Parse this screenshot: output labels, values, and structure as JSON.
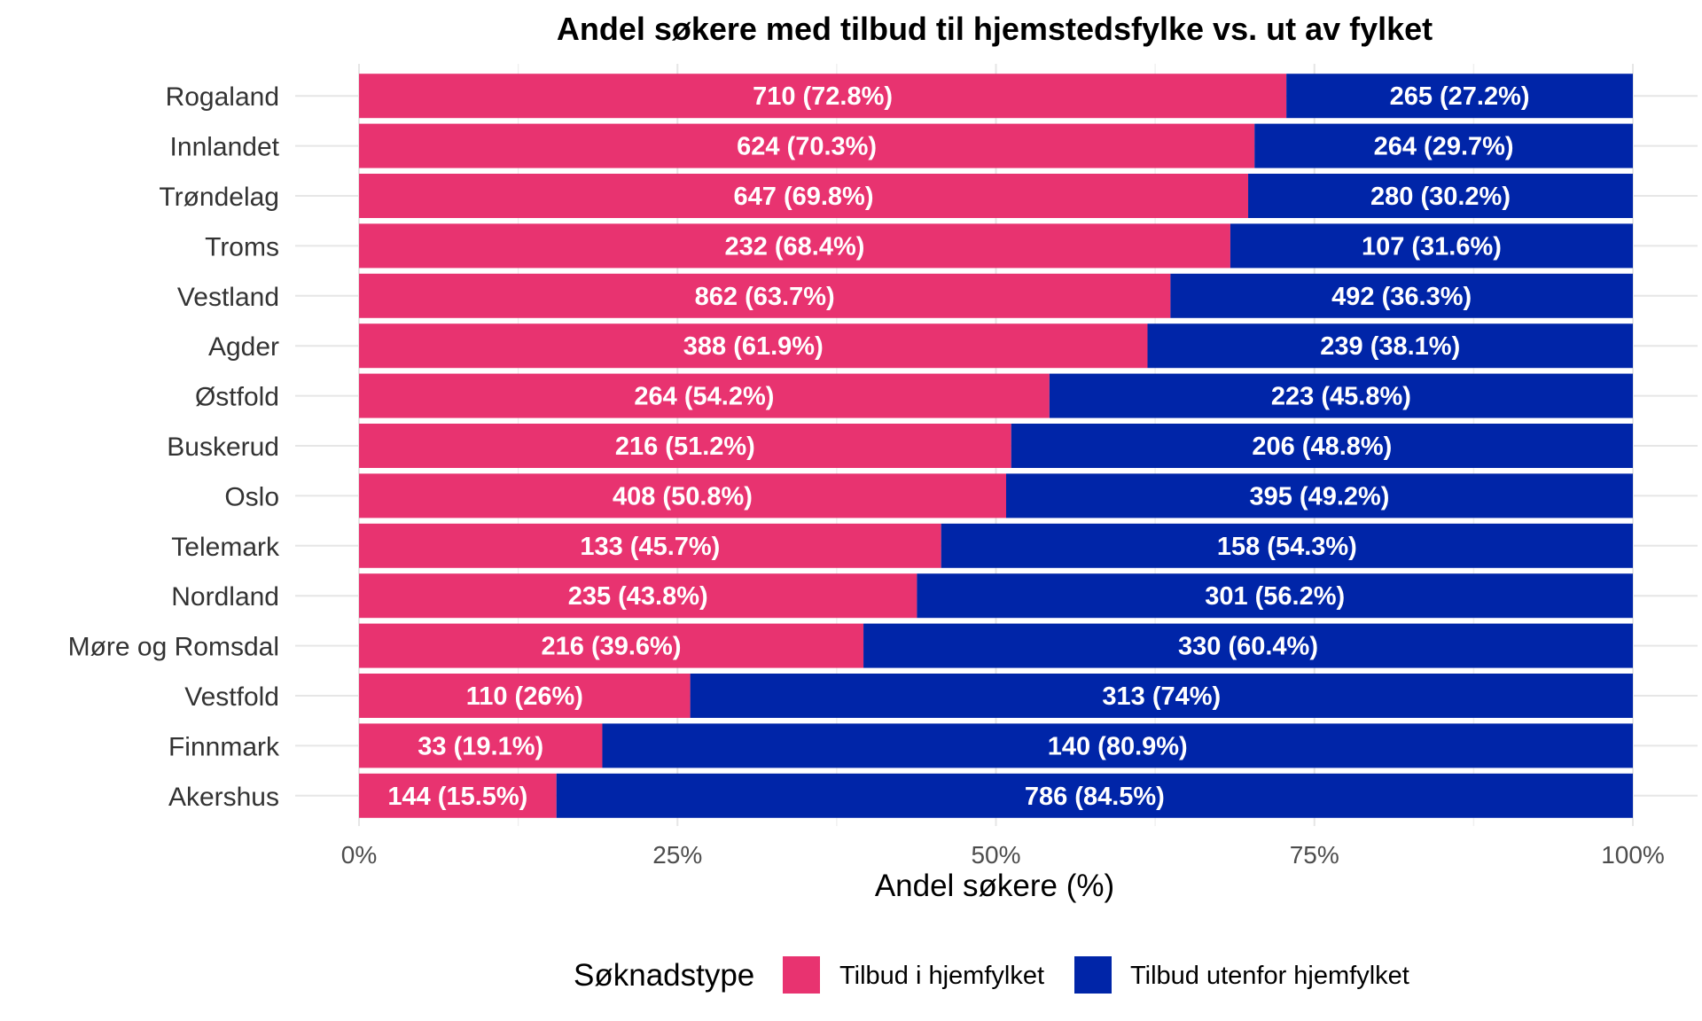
{
  "chart_data": {
    "type": "bar",
    "orientation": "horizontal",
    "stacked": true,
    "title": "Andel søkere med tilbud til hjemstedsfylke vs. ut av fylket",
    "xlabel": "Andel søkere (%)",
    "ylabel": "",
    "xlim": [
      0,
      100
    ],
    "x_ticks": [
      "0%",
      "25%",
      "50%",
      "75%",
      "100%"
    ],
    "grid": true,
    "legend": {
      "title": "Søknadstype",
      "position": "bottom"
    },
    "categories": [
      "Rogaland",
      "Innlandet",
      "Trøndelag",
      "Troms",
      "Vestland",
      "Agder",
      "Østfold",
      "Buskerud",
      "Oslo",
      "Telemark",
      "Nordland",
      "Møre og Romsdal",
      "Vestfold",
      "Finnmark",
      "Akershus"
    ],
    "series": [
      {
        "name": "Tilbud i hjemfylket",
        "color": "#E83370",
        "counts": [
          710,
          624,
          647,
          232,
          862,
          388,
          264,
          216,
          408,
          133,
          235,
          216,
          110,
          33,
          144
        ],
        "values": [
          72.8,
          70.3,
          69.8,
          68.4,
          63.7,
          61.9,
          54.2,
          51.2,
          50.8,
          45.7,
          43.8,
          39.6,
          26,
          19.1,
          15.5
        ],
        "labels": [
          "710 (72.8%)",
          "624 (70.3%)",
          "647 (69.8%)",
          "232 (68.4%)",
          "862 (63.7%)",
          "388 (61.9%)",
          "264 (54.2%)",
          "216 (51.2%)",
          "408 (50.8%)",
          "133 (45.7%)",
          "235 (43.8%)",
          "216 (39.6%)",
          "110 (26%)",
          "33 (19.1%)",
          "144 (15.5%)"
        ]
      },
      {
        "name": "Tilbud utenfor hjemfylket",
        "color": "#0025A8",
        "counts": [
          265,
          264,
          280,
          107,
          492,
          239,
          223,
          206,
          395,
          158,
          301,
          330,
          313,
          140,
          786
        ],
        "values": [
          27.2,
          29.7,
          30.2,
          31.6,
          36.3,
          38.1,
          45.8,
          48.8,
          49.2,
          54.3,
          56.2,
          60.4,
          74,
          80.9,
          84.5
        ],
        "labels": [
          "265 (27.2%)",
          "264 (29.7%)",
          "280 (30.2%)",
          "107 (31.6%)",
          "492 (36.3%)",
          "239 (38.1%)",
          "223 (45.8%)",
          "206 (48.8%)",
          "395 (49.2%)",
          "158 (54.3%)",
          "301 (56.2%)",
          "330 (60.4%)",
          "313 (74%)",
          "140 (80.9%)",
          "786 (84.5%)"
        ]
      }
    ]
  }
}
